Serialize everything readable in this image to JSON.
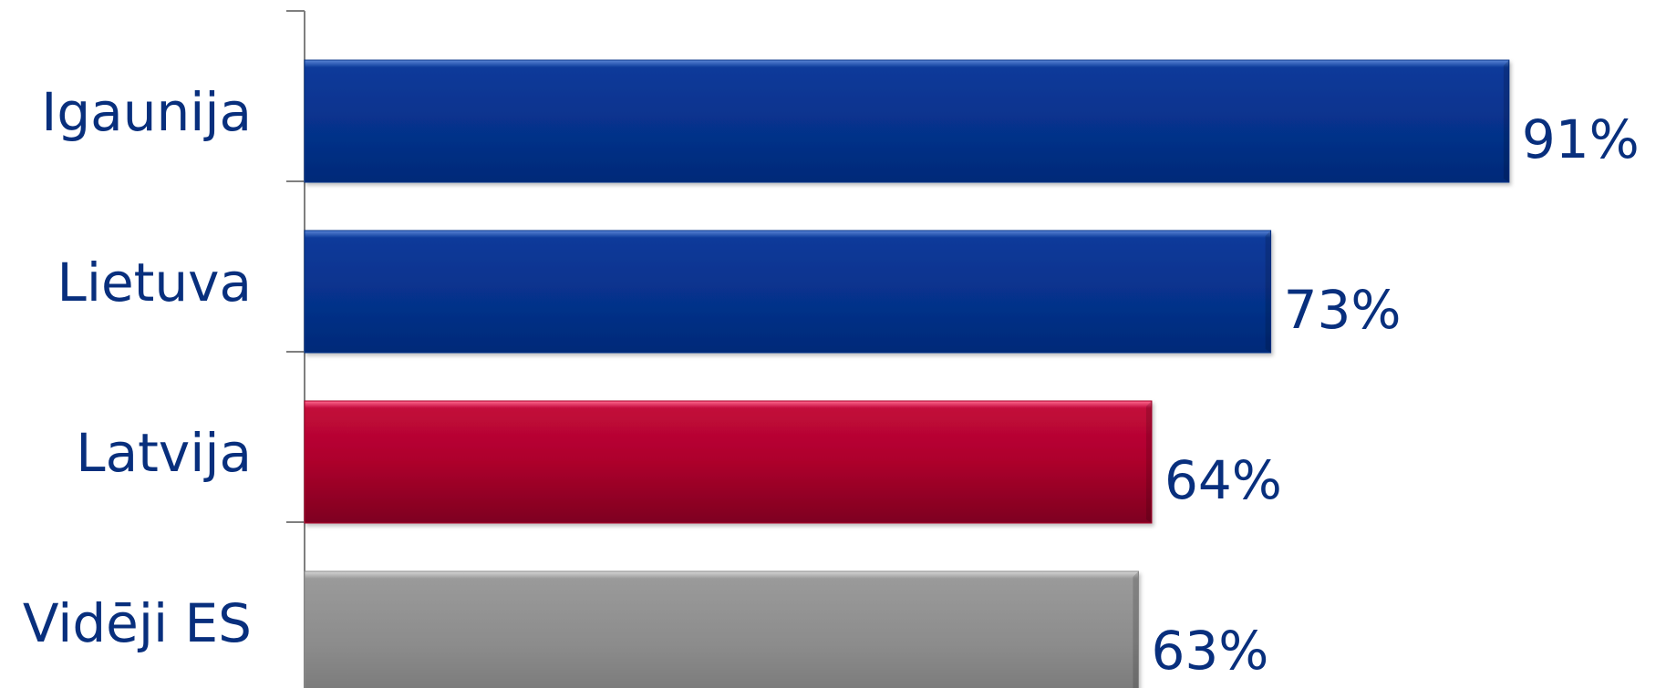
{
  "colors": {
    "text": "#082f7d",
    "axis": "#7f7f7f",
    "bar_blue": "#06318a",
    "bar_red": "#ad042c",
    "bar_gray": "#8c8c8c"
  },
  "chart_data": {
    "type": "bar",
    "orientation": "horizontal",
    "categories": [
      "Igaunija",
      "Lietuva",
      "Latvija",
      "Vidēji ES"
    ],
    "values": [
      91,
      73,
      64,
      63
    ],
    "value_labels": [
      "91%",
      "73%",
      "64%",
      "63%"
    ],
    "bar_colors": [
      "#06318a",
      "#06318a",
      "#ad042c",
      "#8c8c8c"
    ],
    "title": "",
    "xlabel": "",
    "ylabel": "",
    "xlim": [
      0,
      100
    ],
    "grid": false,
    "legend": "none"
  }
}
